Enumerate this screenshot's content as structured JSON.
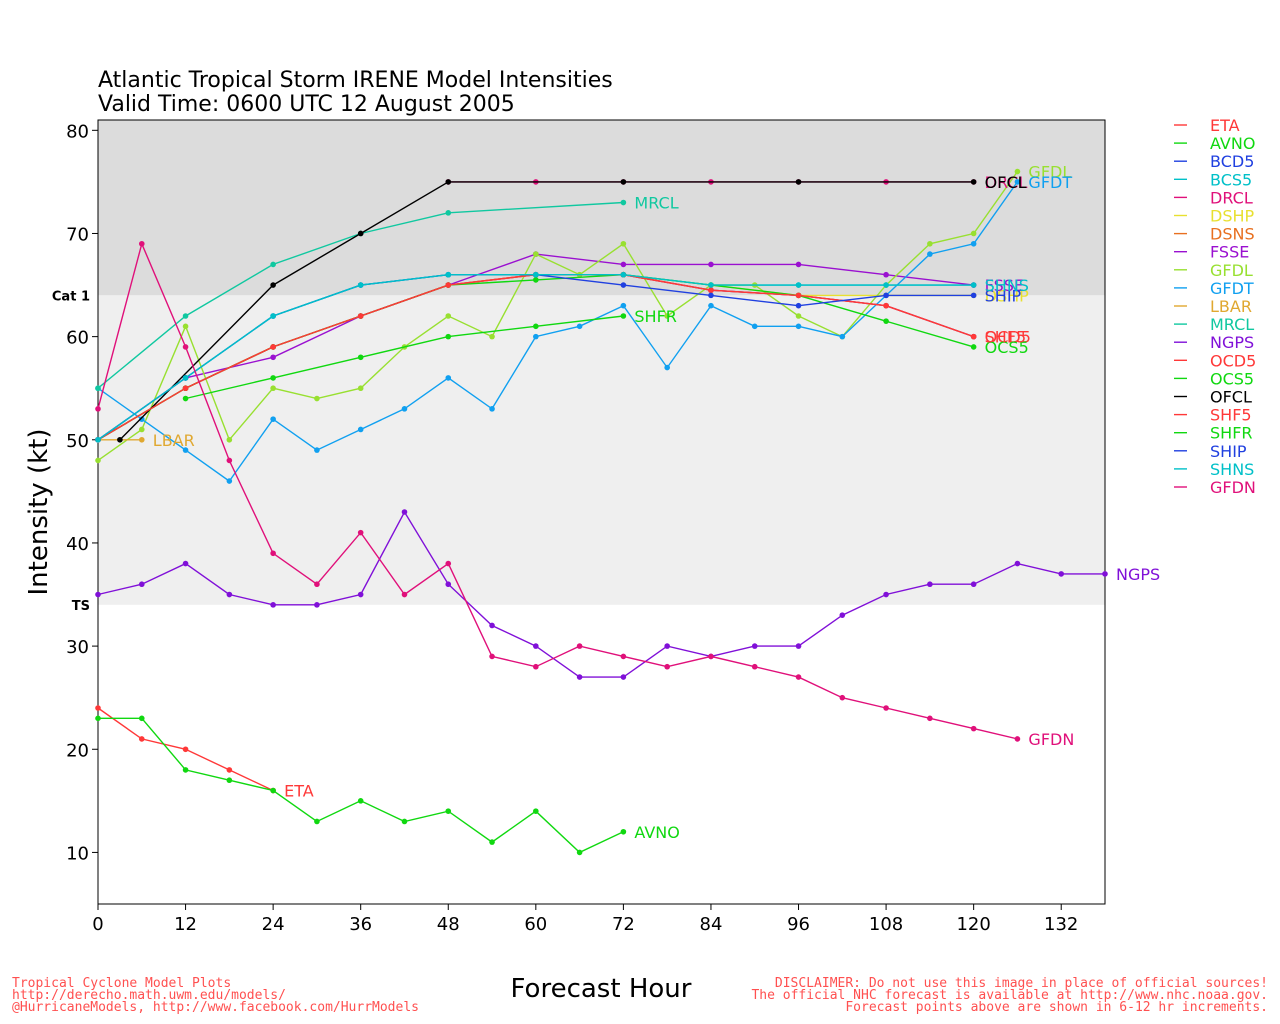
{
  "chart_data": {
    "type": "line",
    "title": "Atlantic Tropical Storm IRENE Model Intensities",
    "subtitle": "Valid Time: 0600 UTC 12 August 2005",
    "xlabel": "Forecast Hour",
    "ylabel": "Intensity (kt)",
    "xlim": [
      0,
      138
    ],
    "ylim": [
      5,
      81
    ],
    "xticks": [
      0,
      12,
      24,
      36,
      48,
      60,
      72,
      84,
      96,
      108,
      120,
      132
    ],
    "yticks": [
      10,
      20,
      30,
      40,
      50,
      60,
      70,
      80
    ],
    "bands": [
      {
        "label": "Cat 1",
        "from": 64,
        "to": 81,
        "color": "#dcdcdc"
      },
      {
        "label": "TS",
        "from": 34,
        "to": 64,
        "color": "#efefef"
      }
    ],
    "series": [
      {
        "name": "ETA",
        "color": "#ff3838",
        "x": [
          0,
          6,
          12,
          18,
          24
        ],
        "values": [
          24,
          21,
          20,
          18,
          16
        ],
        "end_label": "ETA"
      },
      {
        "name": "AVNO",
        "color": "#10d810",
        "x": [
          0,
          6,
          12,
          18,
          24,
          30,
          36,
          42,
          48,
          54,
          60,
          66,
          72
        ],
        "values": [
          23,
          23,
          18,
          17,
          16,
          13,
          15,
          13,
          14,
          11,
          14,
          10,
          12
        ],
        "end_label": "AVNO"
      },
      {
        "name": "BCD5",
        "color": "#2040e0",
        "x": [
          0,
          12,
          24,
          36,
          48,
          60,
          72,
          84,
          96,
          108,
          120
        ],
        "values": [
          50,
          55,
          59,
          62,
          65,
          66,
          66,
          64.5,
          64,
          63,
          60
        ],
        "end_label": ""
      },
      {
        "name": "BCS5",
        "color": "#00c0c8",
        "x": [
          0,
          12,
          24,
          36,
          48,
          60,
          72,
          84,
          96,
          108,
          120
        ],
        "values": [
          50,
          56,
          62,
          65,
          66,
          66,
          66,
          65,
          65,
          65,
          65
        ],
        "end_label": ""
      },
      {
        "name": "DRCL",
        "color": "#e0107a",
        "x": [
          48,
          60,
          72,
          84,
          96,
          108,
          120
        ],
        "values": [
          75,
          75,
          75,
          75,
          75,
          75,
          75
        ],
        "end_label": "DRCL"
      },
      {
        "name": "DSHP",
        "color": "#e8e030",
        "x": [
          0,
          12,
          24,
          36,
          48,
          60,
          72,
          84,
          96,
          108,
          120
        ],
        "values": [
          50,
          55,
          59,
          62,
          65,
          66,
          66,
          65,
          64,
          64,
          64
        ],
        "end_label": "DSHP"
      },
      {
        "name": "DSNS",
        "color": "#e87020",
        "x": [
          0,
          12,
          24,
          36,
          48
        ],
        "values": [
          50,
          55,
          59,
          62,
          65
        ],
        "end_label": ""
      },
      {
        "name": "FSSE",
        "color": "#9a10d0",
        "x": [
          0,
          12,
          24,
          36,
          48,
          60,
          72,
          84,
          96,
          108,
          120
        ],
        "values": [
          50,
          56,
          58,
          62,
          65,
          68,
          67,
          67,
          67,
          66,
          65
        ],
        "end_label": "FSSE"
      },
      {
        "name": "GFDL",
        "color": "#98e030",
        "x": [
          0,
          6,
          12,
          18,
          24,
          30,
          36,
          42,
          48,
          54,
          60,
          66,
          72,
          78,
          84,
          90,
          96,
          102,
          108,
          114,
          120,
          126
        ],
        "values": [
          48,
          51,
          61,
          50,
          55,
          54,
          55,
          59,
          62,
          60,
          68,
          66,
          69,
          62,
          65,
          65,
          62,
          60,
          65,
          69,
          70,
          76
        ],
        "end_label": "GFDL"
      },
      {
        "name": "GFDT",
        "color": "#10a0f0",
        "x": [
          0,
          6,
          12,
          18,
          24,
          30,
          36,
          42,
          48,
          54,
          60,
          66,
          72,
          78,
          84,
          90,
          96,
          102,
          108,
          114,
          120,
          126
        ],
        "values": [
          55,
          52,
          49,
          46,
          52,
          49,
          51,
          53,
          56,
          53,
          60,
          61,
          63,
          57,
          63,
          61,
          61,
          60,
          64,
          68,
          69,
          75
        ],
        "end_label": "GFDT"
      },
      {
        "name": "LBAR",
        "color": "#e0a830",
        "x": [
          0,
          6
        ],
        "values": [
          50,
          50
        ],
        "end_label": "LBAR"
      },
      {
        "name": "MRCL",
        "color": "#10c8a0",
        "x": [
          0,
          12,
          24,
          36,
          48,
          72
        ],
        "values": [
          55,
          62,
          67,
          70,
          72,
          73
        ],
        "end_label": "MRCL"
      },
      {
        "name": "NGPS",
        "color": "#8010d8",
        "x": [
          0,
          6,
          12,
          18,
          24,
          30,
          36,
          42,
          48,
          54,
          60,
          66,
          72,
          78,
          84,
          90,
          96,
          102,
          108,
          114,
          120,
          126,
          132,
          138
        ],
        "values": [
          35,
          36,
          38,
          35,
          34,
          34,
          35,
          43,
          36,
          32,
          30,
          27,
          27,
          30,
          29,
          30,
          30,
          33,
          35,
          36,
          36,
          38,
          37,
          37
        ],
        "end_label": "NGPS"
      },
      {
        "name": "OCD5",
        "color": "#ff3838",
        "x": [
          0,
          12,
          24,
          36,
          48,
          60,
          72,
          84,
          96,
          108,
          120
        ],
        "values": [
          50,
          55,
          59,
          62,
          65,
          66,
          66,
          64.5,
          64,
          63,
          60
        ],
        "end_label": "OCD5"
      },
      {
        "name": "OCS5",
        "color": "#10d810",
        "x": [
          0,
          12,
          24,
          36,
          48,
          60,
          72,
          84,
          96,
          108,
          120
        ],
        "values": [
          50,
          55,
          59,
          62,
          65,
          65.5,
          66,
          65,
          64,
          61.5,
          59
        ],
        "end_label": "OCS5"
      },
      {
        "name": "OFCL",
        "color": "#000000",
        "x": [
          3,
          24,
          36,
          48,
          72,
          96,
          120
        ],
        "values": [
          50,
          65,
          70,
          75,
          75,
          75,
          75
        ],
        "end_label": "OFCL"
      },
      {
        "name": "SHF5",
        "color": "#ff3838",
        "x": [
          0,
          12,
          24,
          36,
          48,
          60,
          72,
          84,
          96,
          108,
          120
        ],
        "values": [
          50,
          55,
          59,
          62,
          65,
          66,
          66,
          64.5,
          64,
          63,
          60
        ],
        "end_label": "SHF5"
      },
      {
        "name": "SHFR",
        "color": "#10d810",
        "x": [
          12,
          24,
          36,
          48,
          60,
          72
        ],
        "values": [
          54,
          56,
          58,
          60,
          61,
          62
        ],
        "end_label": "SHFR"
      },
      {
        "name": "SHIP",
        "color": "#2040e0",
        "x": [
          0,
          12,
          24,
          36,
          48,
          60,
          72,
          84,
          96,
          108,
          120
        ],
        "values": [
          50,
          56,
          62,
          65,
          66,
          66,
          65,
          64,
          63,
          64,
          64
        ],
        "end_label": "SHIP"
      },
      {
        "name": "SHNS",
        "color": "#00c0c8",
        "x": [
          0,
          12,
          24,
          36,
          48,
          60,
          72,
          84,
          96,
          108,
          120
        ],
        "values": [
          50,
          56,
          62,
          65,
          66,
          66,
          66,
          65,
          65,
          65,
          65
        ],
        "end_label": "SHNS"
      },
      {
        "name": "GFDN",
        "color": "#e0107a",
        "x": [
          0,
          6,
          12,
          18,
          24,
          30,
          36,
          42,
          48,
          54,
          60,
          66,
          72,
          78,
          84,
          90,
          96,
          102,
          108,
          114,
          120,
          126
        ],
        "values": [
          53,
          69,
          59,
          48,
          39,
          36,
          41,
          35,
          38,
          29,
          28,
          30,
          29,
          28,
          29,
          28,
          27,
          25,
          24,
          23,
          22,
          21
        ],
        "end_label": "GFDN"
      }
    ]
  },
  "footer": {
    "left1": "Tropical Cyclone Model Plots",
    "left2": "http://derecho.math.uwm.edu/models/",
    "left3": "@HurricaneModels, http://www.facebook.com/HurrModels",
    "right1": "DISCLAIMER: Do not use this image in place of official sources!",
    "right2": "The official NHC forecast is available at http://www.nhc.noaa.gov.",
    "right3": "Forecast points above are shown in 6-12 hr increments."
  }
}
